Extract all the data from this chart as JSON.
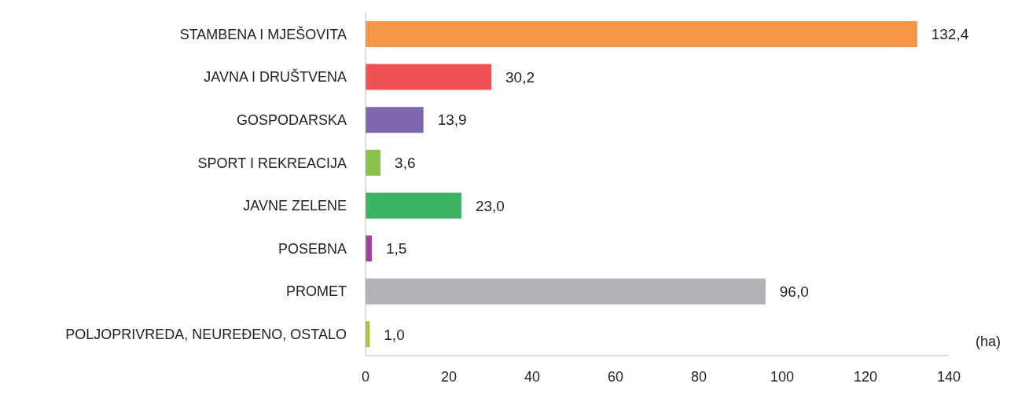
{
  "chart_data": {
    "type": "bar",
    "orientation": "horizontal",
    "xlabel": "(ha)",
    "categories": [
      "STAMBENA I MJEŠOVITA",
      "JAVNA I DRUŠTVENA",
      "GOSPODARSKA",
      "SPORT I REKREACIJA",
      "JAVNE ZELENE",
      "POSEBNA",
      "PROMET",
      "POLJOPRIVREDA, NEUREĐENO, OSTALO"
    ],
    "values": [
      132.4,
      30.2,
      13.9,
      3.6,
      23.0,
      1.5,
      96.0,
      1.0
    ],
    "value_labels": [
      "132,4",
      "30,2",
      "13,9",
      "3,6",
      "23,0",
      "1,5",
      "96,0",
      "1,0"
    ],
    "colors": [
      "#f79646",
      "#ef5254",
      "#7d66ad",
      "#8bc34a",
      "#3db463",
      "#a2409b",
      "#b1b2b6",
      "#9acd32"
    ],
    "xlim": [
      0,
      140
    ],
    "xticks": [
      0,
      20,
      40,
      60,
      80,
      100,
      120,
      140
    ],
    "grid": false,
    "legend": false
  }
}
